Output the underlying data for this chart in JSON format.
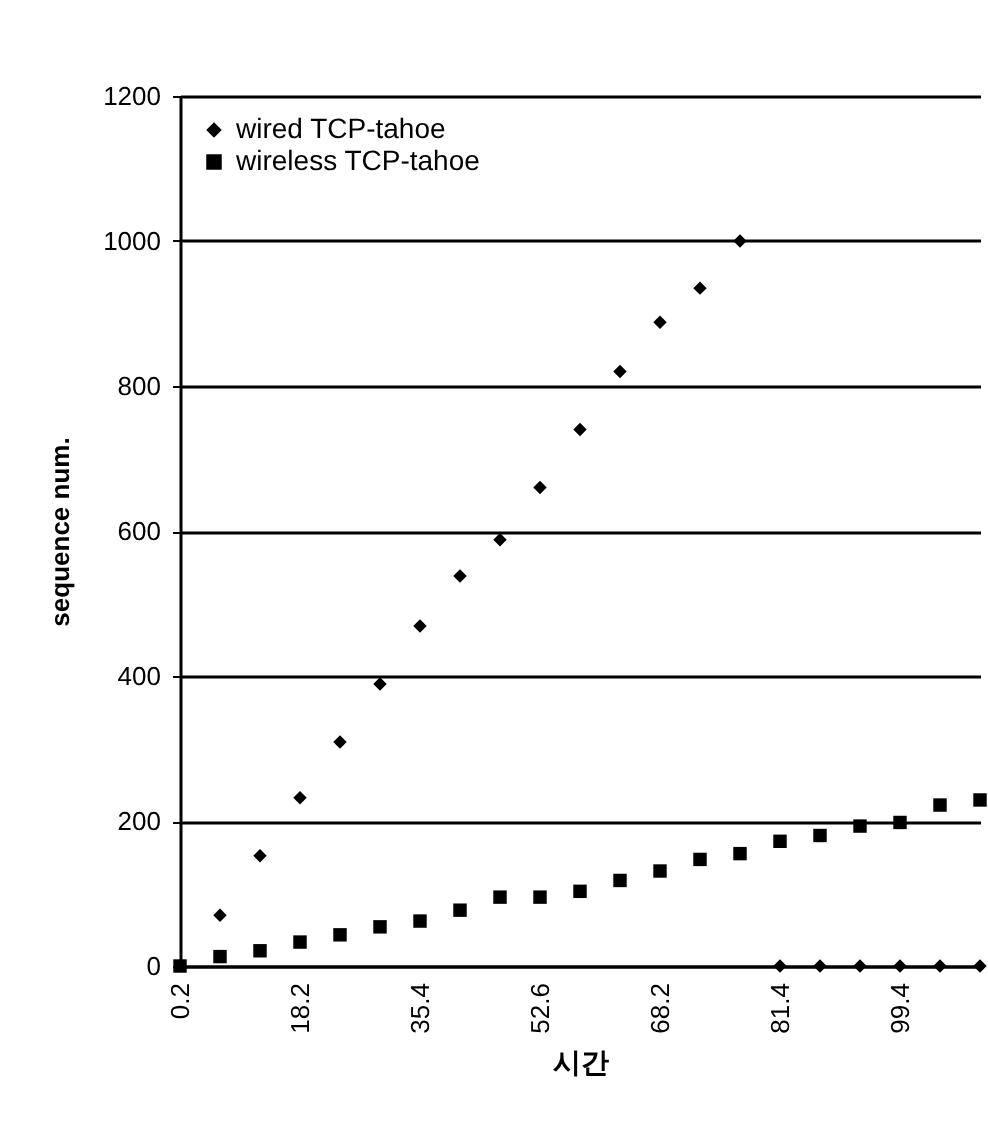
{
  "chart_data": {
    "type": "scatter",
    "xlabel": "시간",
    "ylabel": "sequence num.",
    "categories": [
      "0.2",
      null,
      null,
      "18.2",
      null,
      null,
      "35.4",
      null,
      null,
      "52.6",
      null,
      null,
      "68.2",
      null,
      null,
      "81.4",
      null,
      null,
      "99.4",
      null,
      null
    ],
    "series": [
      {
        "name": "wired TCP-tahoe",
        "color": "#000000",
        "marker": "diamond",
        "values": [
          null,
          70,
          152,
          232,
          309,
          389,
          469,
          538,
          588,
          660,
          740,
          820,
          888,
          935,
          1000,
          0,
          0,
          0,
          0,
          0,
          0
        ]
      },
      {
        "name": "wireless TCP-tahoe",
        "color": "#000000",
        "marker": "square",
        "values": [
          0,
          13,
          21,
          33,
          43,
          54,
          62,
          77,
          95,
          95,
          103,
          118,
          131,
          147,
          155,
          172,
          180,
          193,
          198,
          222,
          229
        ]
      }
    ],
    "ylim": [
      0,
      1200
    ],
    "yticks": [
      0,
      200,
      400,
      600,
      800,
      1000,
      1200
    ],
    "grid": "y",
    "legend": "top left"
  }
}
